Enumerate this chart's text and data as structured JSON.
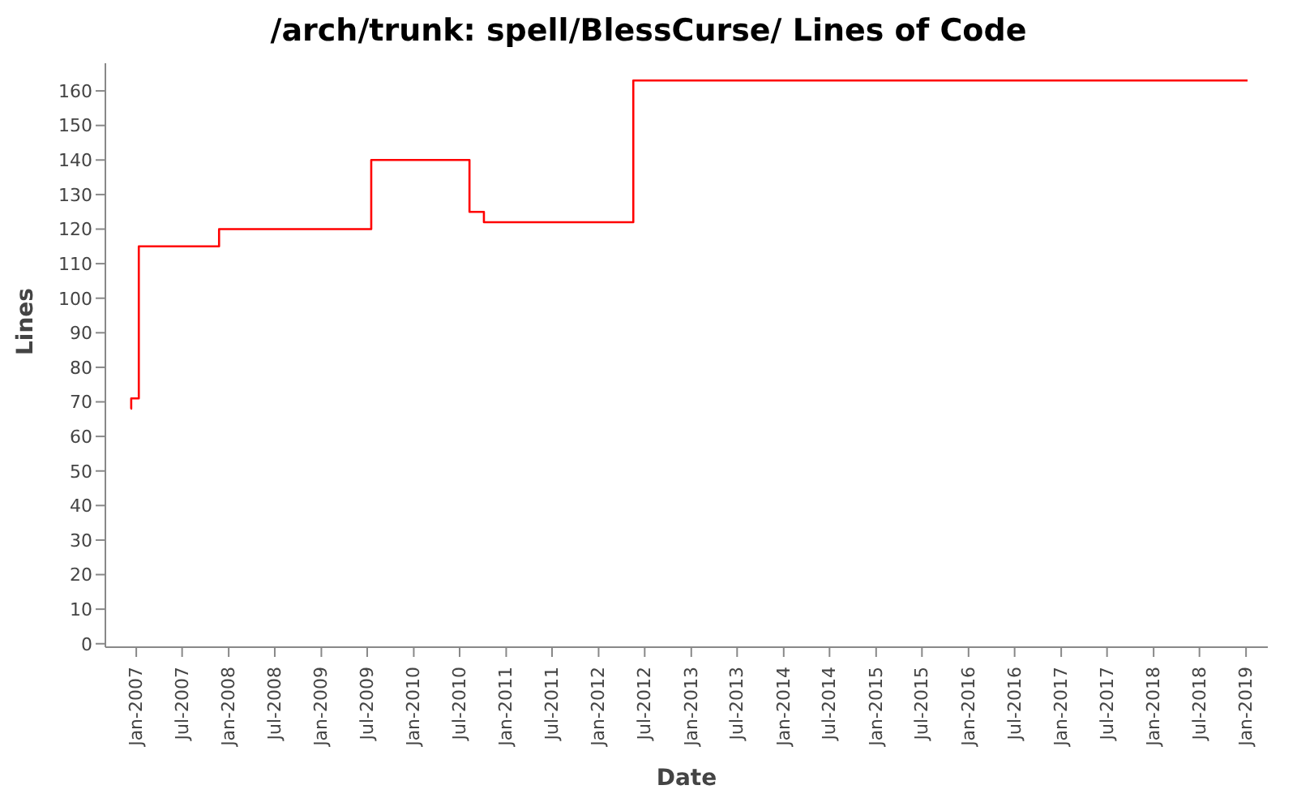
{
  "chart_data": {
    "type": "step",
    "title": "/arch/trunk: spell/BlessCurse/ Lines of Code",
    "xlabel": "Date",
    "ylabel": "Lines",
    "x": [
      "2006-12-10",
      "2006-12-12",
      "2007-01-11",
      "2007-11-24",
      "2009-07-17",
      "2010-08-09",
      "2010-10-05",
      "2012-05-17",
      "2019-01-07"
    ],
    "series": [
      {
        "color": "#ff0000",
        "values": [
          68,
          71,
          115,
          120,
          140,
          125,
          122,
          163,
          163
        ]
      }
    ],
    "xlim": [
      "2006-09-01",
      "2019-03-28"
    ],
    "xticks": [
      {
        "value": "2007-01-01",
        "label": "Jan-2007"
      },
      {
        "value": "2007-07-01",
        "label": "Jul-2007"
      },
      {
        "value": "2008-01-01",
        "label": "Jan-2008"
      },
      {
        "value": "2008-07-01",
        "label": "Jul-2008"
      },
      {
        "value": "2009-01-01",
        "label": "Jan-2009"
      },
      {
        "value": "2009-07-01",
        "label": "Jul-2009"
      },
      {
        "value": "2010-01-01",
        "label": "Jan-2010"
      },
      {
        "value": "2010-07-01",
        "label": "Jul-2010"
      },
      {
        "value": "2011-01-01",
        "label": "Jan-2011"
      },
      {
        "value": "2011-07-01",
        "label": "Jul-2011"
      },
      {
        "value": "2012-01-01",
        "label": "Jan-2012"
      },
      {
        "value": "2012-07-01",
        "label": "Jul-2012"
      },
      {
        "value": "2013-01-01",
        "label": "Jan-2013"
      },
      {
        "value": "2013-07-01",
        "label": "Jul-2013"
      },
      {
        "value": "2014-01-01",
        "label": "Jan-2014"
      },
      {
        "value": "2014-07-01",
        "label": "Jul-2014"
      },
      {
        "value": "2015-01-01",
        "label": "Jan-2015"
      },
      {
        "value": "2015-07-01",
        "label": "Jul-2015"
      },
      {
        "value": "2016-01-01",
        "label": "Jan-2016"
      },
      {
        "value": "2016-07-01",
        "label": "Jul-2016"
      },
      {
        "value": "2017-01-01",
        "label": "Jan-2017"
      },
      {
        "value": "2017-07-01",
        "label": "Jul-2017"
      },
      {
        "value": "2018-01-01",
        "label": "Jan-2018"
      },
      {
        "value": "2018-07-01",
        "label": "Jul-2018"
      },
      {
        "value": "2019-01-01",
        "label": "Jan-2019"
      }
    ],
    "ylim": [
      -1,
      168
    ],
    "yticks": [
      0,
      10,
      20,
      30,
      40,
      50,
      60,
      70,
      80,
      90,
      100,
      110,
      120,
      130,
      140,
      150,
      160
    ],
    "grid": false,
    "legend": false,
    "marker": "none",
    "line_style": "solid"
  }
}
